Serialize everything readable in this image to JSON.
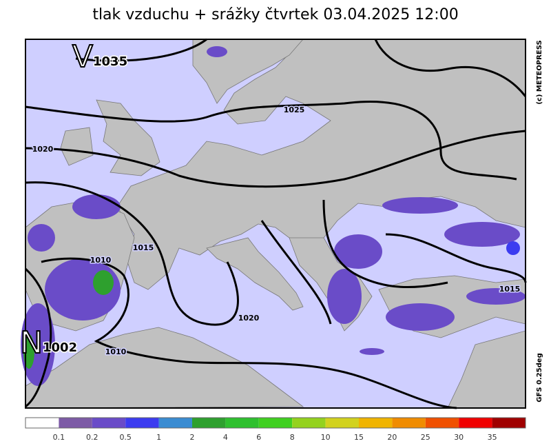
{
  "title": "tlak vzduchu + srážky čtvrtek 03.04.2025 12:00",
  "copyright": "(c) METEOPRESS",
  "model": "GFS 0.25deg",
  "pressure_centers": [
    {
      "symbol": "V",
      "value": "1035"
    },
    {
      "symbol": "N",
      "value": "1002"
    }
  ],
  "isobar_labels": [
    "1025",
    "1020",
    "1015",
    "1010",
    "1020",
    "1010",
    "1015"
  ],
  "legend": {
    "colors": [
      "#ffffff",
      "#7d5ba6",
      "#6a4cc8",
      "#3c3cf0",
      "#3a8cd2",
      "#2ea02e",
      "#2ec02e",
      "#40d020",
      "#94d21e",
      "#d2d21e",
      "#f0b400",
      "#f08c00",
      "#f05000",
      "#f00000",
      "#a00000"
    ],
    "labels": [
      "0.1",
      "0.2",
      "0.5",
      "1",
      "2",
      "4",
      "6",
      "8",
      "10",
      "15",
      "20",
      "25",
      "30",
      "35"
    ]
  }
}
